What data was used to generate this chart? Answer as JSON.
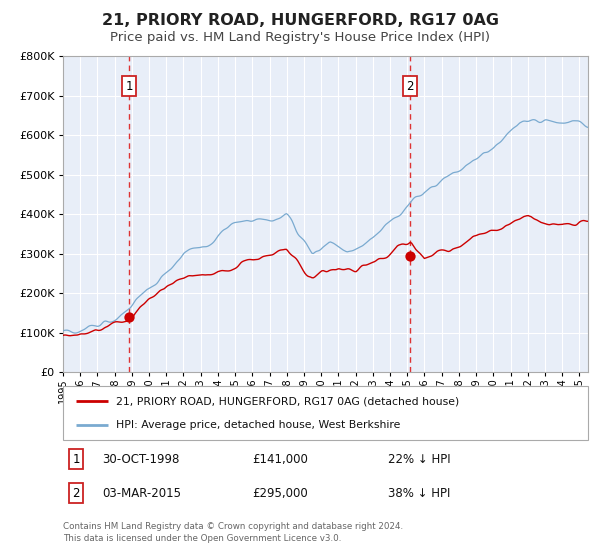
{
  "title": "21, PRIORY ROAD, HUNGERFORD, RG17 0AG",
  "subtitle": "Price paid vs. HM Land Registry's House Price Index (HPI)",
  "title_fontsize": 11.5,
  "subtitle_fontsize": 9.5,
  "background_color": "#ffffff",
  "plot_bg_color": "#e8eef8",
  "grid_color": "#ffffff",
  "legend_label_red": "21, PRIORY ROAD, HUNGERFORD, RG17 0AG (detached house)",
  "legend_label_blue": "HPI: Average price, detached house, West Berkshire",
  "marker1_date_x": 1998.83,
  "marker1_red_y": 141000,
  "marker1_label": "1",
  "marker1_info_date": "30-OCT-1998",
  "marker1_info_price": "£141,000",
  "marker1_info_hpi": "22% ↓ HPI",
  "marker2_date_x": 2015.17,
  "marker2_red_y": 295000,
  "marker2_label": "2",
  "marker2_info_date": "03-MAR-2015",
  "marker2_info_price": "£295,000",
  "marker2_info_hpi": "38% ↓ HPI",
  "footer": "Contains HM Land Registry data © Crown copyright and database right 2024.\nThis data is licensed under the Open Government Licence v3.0.",
  "ylim": [
    0,
    800000
  ],
  "yticks": [
    0,
    100000,
    200000,
    300000,
    400000,
    500000,
    600000,
    700000,
    800000
  ],
  "xlim": [
    1995.0,
    2025.5
  ],
  "red_color": "#cc0000",
  "blue_color": "#7aaad0",
  "vline_color": "#dd3333",
  "marker_box_color": "#cc2222"
}
